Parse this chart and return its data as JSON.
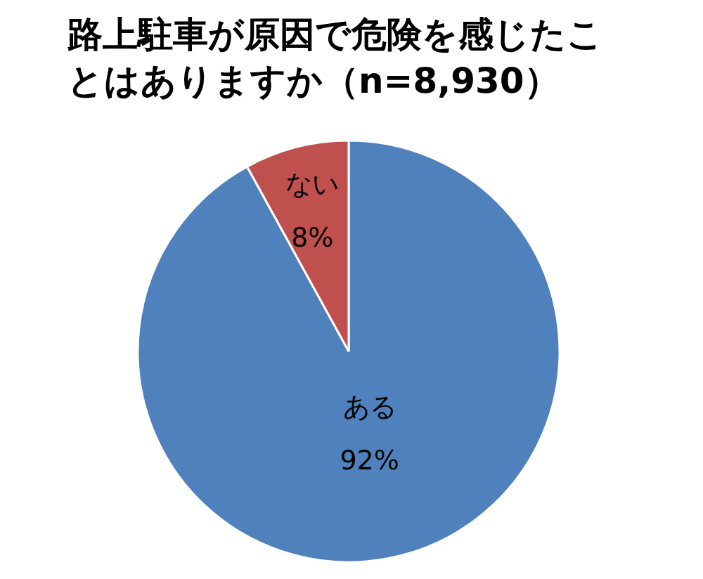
{
  "chart_data": {
    "type": "pie",
    "title": "路上駐車が原因で危険を感じたことはありますか（n=8,930）",
    "categories": [
      "ある",
      "ない"
    ],
    "values": [
      92,
      8
    ],
    "colors": [
      "#4f81bd",
      "#c0504d"
    ],
    "value_labels": [
      "92%",
      "8%"
    ]
  }
}
